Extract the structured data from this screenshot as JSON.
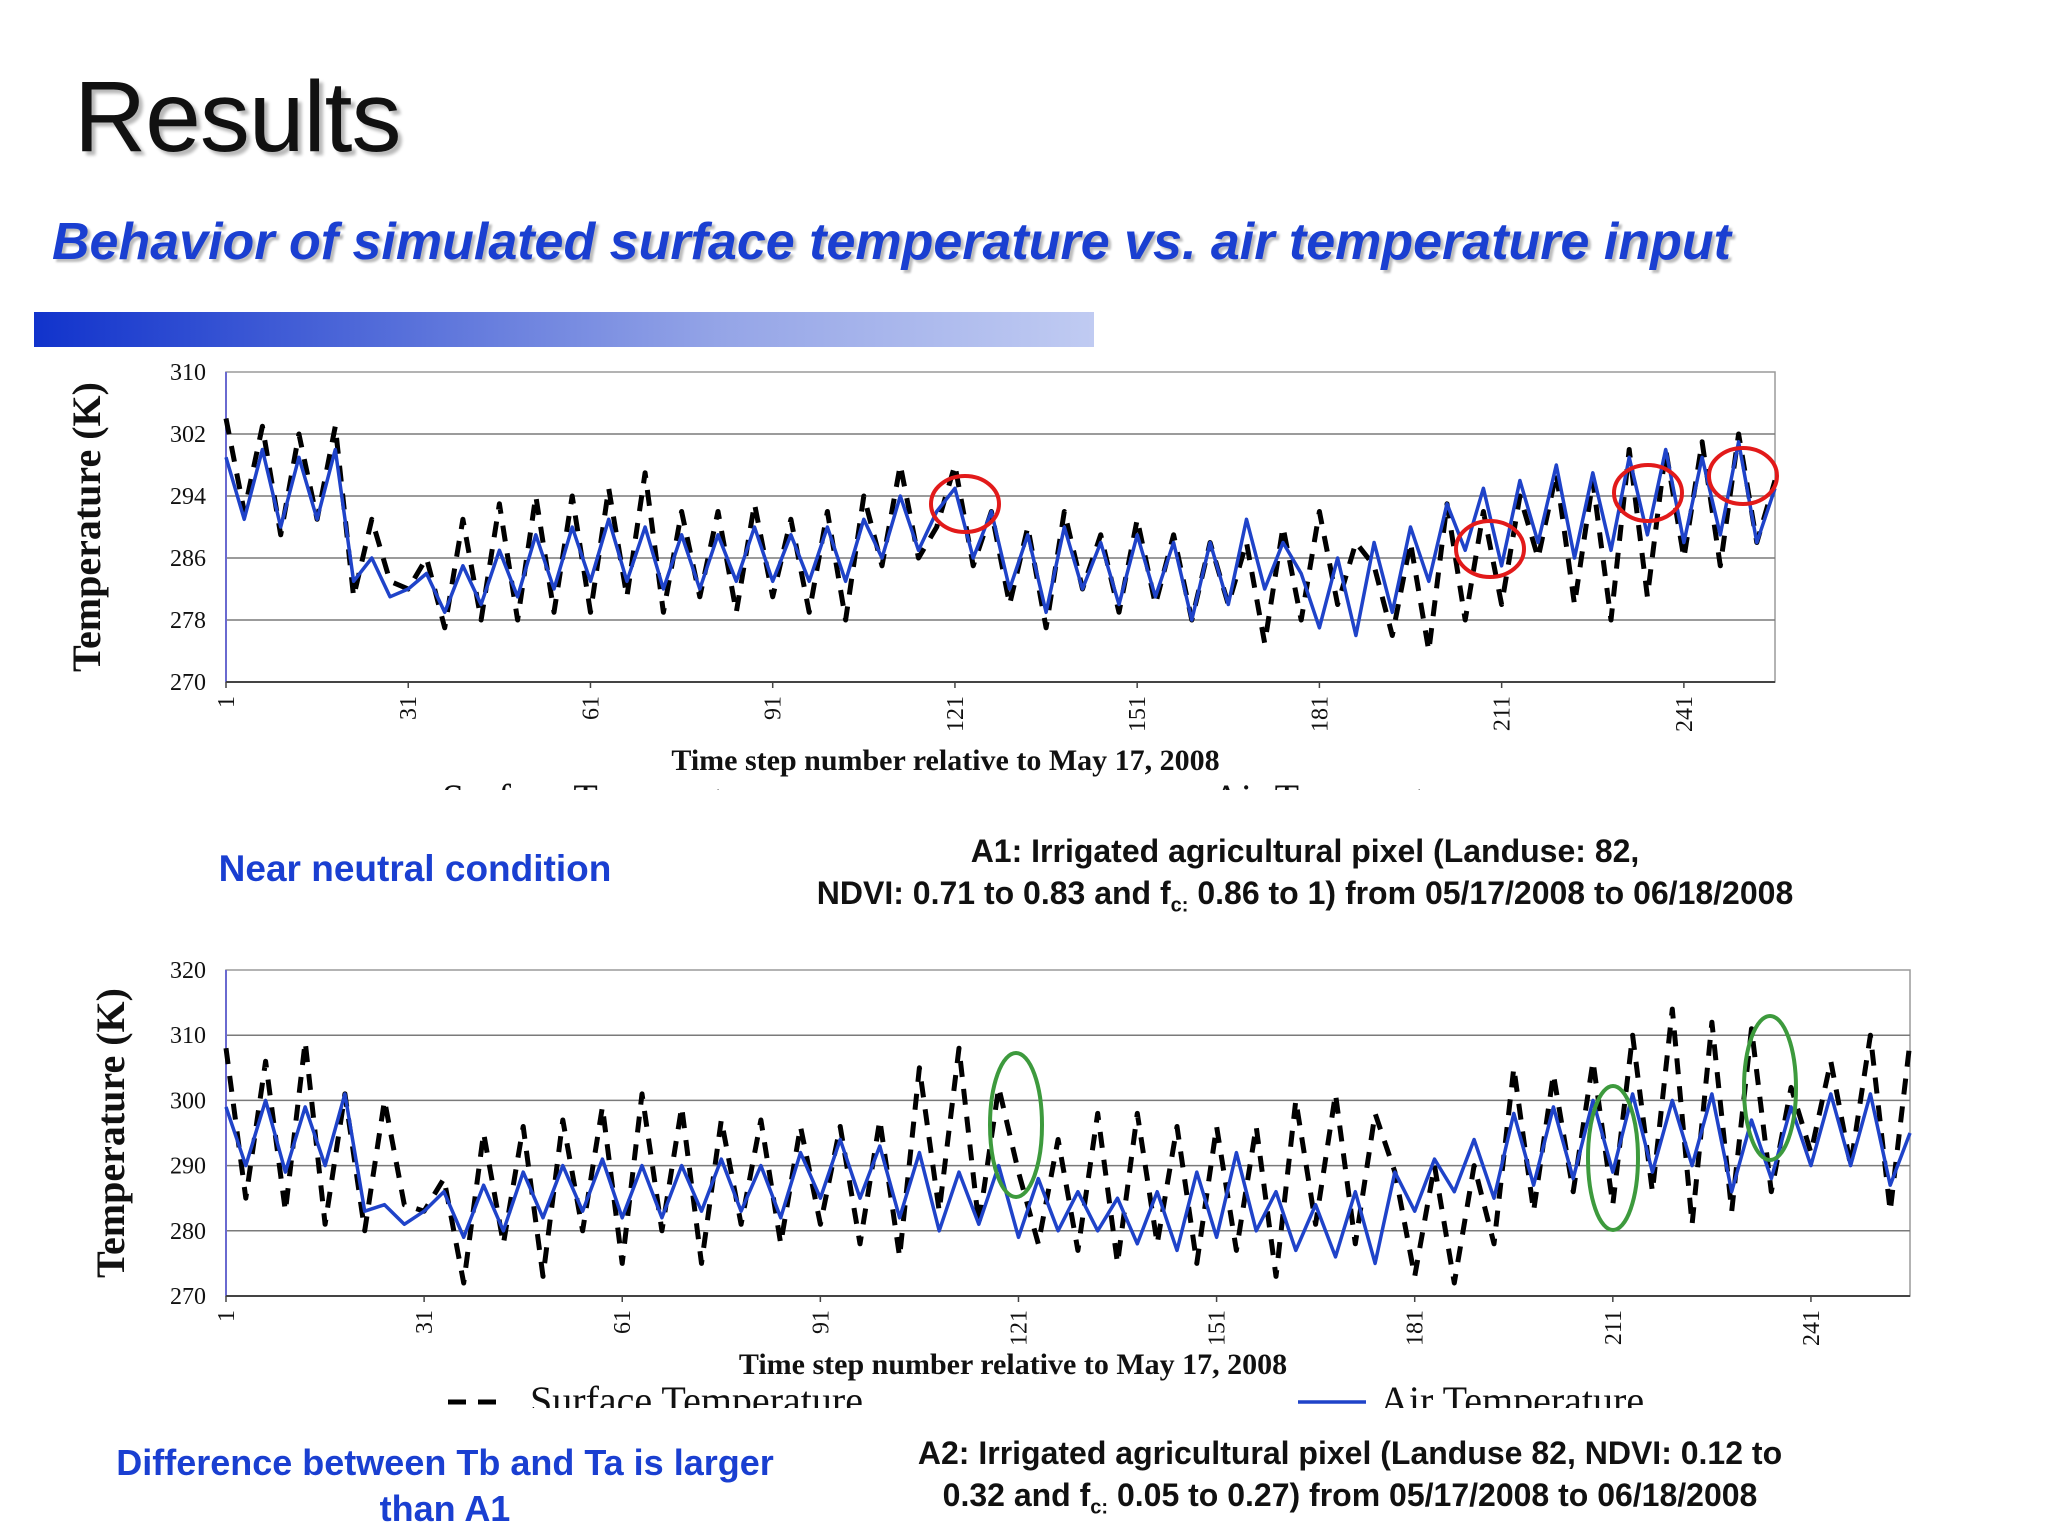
{
  "slide": {
    "title": "Results",
    "subtitle": "Behavior of simulated surface temperature vs. air temperature input"
  },
  "colors": {
    "title": "#111111",
    "subtitle": "#1a3fd1",
    "surface_series": "#000000",
    "air_series": "#1f43c9",
    "red_circle": "#e21a1a",
    "green_ellipse": "#3d9a3d"
  },
  "panels": [
    {
      "note": "Near neutral condition",
      "caption_line1": "A1: Irrigated agricultural pixel (Landuse:  82,",
      "caption_line2_pre": "NDVI: 0.71 to 0.83 and f",
      "caption_sub": "c:",
      "caption_line2_post": " 0.86 to 1) from 05/17/2008 to 06/18/2008"
    },
    {
      "note_line1": "Difference between Tb and Ta is larger",
      "note_line2": "than A1",
      "caption_line1": "A2: Irrigated agricultural pixel (Landuse 82, NDVI: 0.12 to",
      "caption_line2_pre": "0.32 and f",
      "caption_sub": "c:",
      "caption_line2_post": " 0.05 to 0.27) from 05/17/2008 to 06/18/2008"
    }
  ],
  "chart_data": [
    {
      "type": "line",
      "xlabel": "Time step number relative to May 17, 2008",
      "ylabel": "Temperature (K)",
      "ylim": [
        270,
        310
      ],
      "yticks": [
        "310",
        "302",
        "294",
        "286",
        "278",
        "270"
      ],
      "xticks": [
        "1",
        "31",
        "61",
        "91",
        "121",
        "151",
        "181",
        "211",
        "241"
      ],
      "xlim": [
        1,
        256
      ],
      "grid": "horizontal",
      "legend_position": "bottom",
      "series": [
        {
          "name": "Surface Temperature",
          "style": "dashed",
          "color": "#000000",
          "x": [
            1,
            4,
            7,
            10,
            13,
            16,
            19,
            22,
            25,
            28,
            31,
            34,
            37,
            40,
            43,
            46,
            49,
            52,
            55,
            58,
            61,
            64,
            67,
            70,
            73,
            76,
            79,
            82,
            85,
            88,
            91,
            94,
            97,
            100,
            103,
            106,
            109,
            112,
            115,
            118,
            121,
            124,
            127,
            130,
            133,
            136,
            139,
            142,
            145,
            148,
            151,
            154,
            157,
            160,
            163,
            166,
            169,
            172,
            175,
            178,
            181,
            184,
            187,
            190,
            193,
            196,
            199,
            202,
            205,
            208,
            211,
            214,
            217,
            220,
            223,
            226,
            229,
            232,
            235,
            238,
            241,
            244,
            247,
            250,
            253,
            256
          ],
          "y": [
            304,
            292,
            303,
            289,
            302,
            291,
            303,
            281,
            291,
            283,
            282,
            286,
            277,
            291,
            278,
            293,
            278,
            294,
            279,
            294,
            279,
            295,
            281,
            297,
            279,
            292,
            281,
            292,
            279,
            293,
            281,
            291,
            279,
            292,
            278,
            294,
            285,
            298,
            286,
            290,
            298,
            285,
            292,
            280,
            290,
            277,
            292,
            282,
            289,
            279,
            291,
            280,
            289,
            278,
            288,
            280,
            288,
            275,
            290,
            278,
            292,
            280,
            288,
            285,
            276,
            288,
            274,
            293,
            278,
            292,
            280,
            294,
            286,
            297,
            280,
            296,
            278,
            300,
            281,
            300,
            286,
            301,
            285,
            302,
            288,
            296
          ]
        },
        {
          "name": "Air Temperature",
          "style": "solid",
          "color": "#1f43c9",
          "x": [
            1,
            4,
            7,
            10,
            13,
            16,
            19,
            22,
            25,
            28,
            31,
            34,
            37,
            40,
            43,
            46,
            49,
            52,
            55,
            58,
            61,
            64,
            67,
            70,
            73,
            76,
            79,
            82,
            85,
            88,
            91,
            94,
            97,
            100,
            103,
            106,
            109,
            112,
            115,
            118,
            121,
            124,
            127,
            130,
            133,
            136,
            139,
            142,
            145,
            148,
            151,
            154,
            157,
            160,
            163,
            166,
            169,
            172,
            175,
            178,
            181,
            184,
            187,
            190,
            193,
            196,
            199,
            202,
            205,
            208,
            211,
            214,
            217,
            220,
            223,
            226,
            229,
            232,
            235,
            238,
            241,
            244,
            247,
            250,
            253,
            256
          ],
          "y": [
            299,
            291,
            300,
            290,
            299,
            291,
            300,
            283,
            286,
            281,
            282,
            284,
            279,
            285,
            280,
            287,
            281,
            289,
            282,
            290,
            283,
            291,
            283,
            290,
            282,
            289,
            282,
            289,
            283,
            290,
            283,
            289,
            283,
            290,
            283,
            291,
            286,
            294,
            287,
            292,
            295,
            286,
            292,
            282,
            289,
            279,
            290,
            282,
            288,
            280,
            289,
            281,
            288,
            278,
            288,
            280,
            291,
            282,
            288,
            284,
            277,
            286,
            276,
            288,
            279,
            290,
            283,
            293,
            287,
            295,
            285,
            296,
            288,
            298,
            286,
            297,
            287,
            299,
            289,
            300,
            288,
            299,
            289,
            301,
            288,
            295
          ]
        }
      ],
      "annotations": [
        "red circles around surface-temperature peaks near steps 121, 210, 236, 250"
      ]
    },
    {
      "type": "line",
      "xlabel": "Time step number relative to May 17, 2008",
      "ylabel": "Temperature (K)",
      "ylim": [
        270,
        320
      ],
      "yticks": [
        "320",
        "310",
        "300",
        "290",
        "280",
        "270"
      ],
      "xticks": [
        "1",
        "31",
        "61",
        "91",
        "121",
        "151",
        "181",
        "211",
        "241"
      ],
      "xlim": [
        1,
        256
      ],
      "grid": "horizontal",
      "legend_position": "bottom",
      "series": [
        {
          "name": "Surface Temperature",
          "style": "dashed",
          "color": "#000000",
          "x": [
            1,
            4,
            7,
            10,
            13,
            16,
            19,
            22,
            25,
            28,
            31,
            34,
            37,
            40,
            43,
            46,
            49,
            52,
            55,
            58,
            61,
            64,
            67,
            70,
            73,
            76,
            79,
            82,
            85,
            88,
            91,
            94,
            97,
            100,
            103,
            106,
            109,
            112,
            115,
            118,
            121,
            124,
            127,
            130,
            133,
            136,
            139,
            142,
            145,
            148,
            151,
            154,
            157,
            160,
            163,
            166,
            169,
            172,
            175,
            178,
            181,
            184,
            187,
            190,
            193,
            196,
            199,
            202,
            205,
            208,
            211,
            214,
            217,
            220,
            223,
            226,
            229,
            232,
            235,
            238,
            241,
            244,
            247,
            250,
            253,
            256
          ],
          "y": [
            308,
            285,
            306,
            283,
            309,
            281,
            301,
            280,
            300,
            284,
            283,
            288,
            272,
            295,
            278,
            296,
            273,
            297,
            280,
            299,
            275,
            301,
            280,
            299,
            275,
            297,
            281,
            297,
            278,
            296,
            281,
            296,
            278,
            297,
            276,
            305,
            283,
            308,
            281,
            302,
            289,
            278,
            294,
            277,
            298,
            275,
            298,
            278,
            296,
            275,
            296,
            277,
            296,
            273,
            300,
            281,
            301,
            278,
            298,
            289,
            273,
            290,
            272,
            290,
            278,
            305,
            283,
            304,
            286,
            306,
            284,
            310,
            286,
            314,
            281,
            312,
            283,
            311,
            286,
            302,
            292,
            306,
            290,
            310,
            283,
            309
          ]
        },
        {
          "name": "Air Temperature",
          "style": "solid",
          "color": "#1f43c9",
          "x": [
            1,
            4,
            7,
            10,
            13,
            16,
            19,
            22,
            25,
            28,
            31,
            34,
            37,
            40,
            43,
            46,
            49,
            52,
            55,
            58,
            61,
            64,
            67,
            70,
            73,
            76,
            79,
            82,
            85,
            88,
            91,
            94,
            97,
            100,
            103,
            106,
            109,
            112,
            115,
            118,
            121,
            124,
            127,
            130,
            133,
            136,
            139,
            142,
            145,
            148,
            151,
            154,
            157,
            160,
            163,
            166,
            169,
            172,
            175,
            178,
            181,
            184,
            187,
            190,
            193,
            196,
            199,
            202,
            205,
            208,
            211,
            214,
            217,
            220,
            223,
            226,
            229,
            232,
            235,
            238,
            241,
            244,
            247,
            250,
            253,
            256
          ],
          "y": [
            299,
            290,
            300,
            289,
            299,
            290,
            301,
            283,
            284,
            281,
            283,
            286,
            279,
            287,
            280,
            289,
            282,
            290,
            283,
            291,
            282,
            290,
            282,
            290,
            283,
            291,
            283,
            290,
            282,
            292,
            285,
            294,
            285,
            293,
            282,
            292,
            280,
            289,
            281,
            290,
            279,
            288,
            280,
            286,
            280,
            285,
            278,
            286,
            277,
            289,
            279,
            292,
            280,
            286,
            277,
            284,
            276,
            286,
            275,
            289,
            283,
            291,
            286,
            294,
            285,
            298,
            287,
            299,
            288,
            300,
            289,
            301,
            289,
            300,
            290,
            301,
            286,
            297,
            288,
            299,
            290,
            301,
            290,
            301,
            287,
            295
          ]
        }
      ],
      "annotations": [
        "green ellipses around surface-temperature peaks near steps 121, 211, 236"
      ]
    }
  ]
}
